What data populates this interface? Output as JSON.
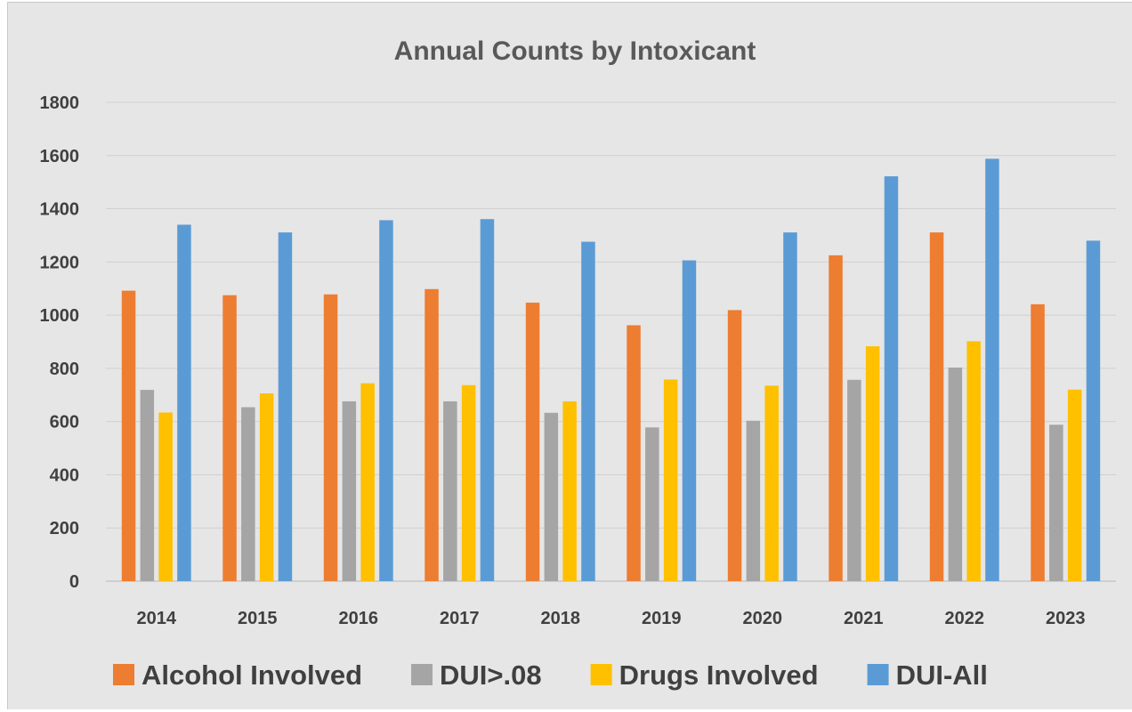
{
  "chart_data": {
    "type": "bar",
    "title": "Annual Counts by Intoxicant",
    "xlabel": "",
    "ylabel": "",
    "ylim": [
      0,
      1800
    ],
    "yticks": [
      0,
      200,
      400,
      600,
      800,
      1000,
      1200,
      1400,
      1600,
      1800
    ],
    "grid": true,
    "legend_position": "bottom",
    "categories": [
      "2014",
      "2015",
      "2016",
      "2017",
      "2018",
      "2019",
      "2020",
      "2021",
      "2022",
      "2023"
    ],
    "series": [
      {
        "name": "Alcohol Involved",
        "color": "#ed7d31",
        "values": [
          1092,
          1075,
          1078,
          1098,
          1047,
          962,
          1019,
          1225,
          1311,
          1041
        ]
      },
      {
        "name": "DUI>.08",
        "color": "#a5a5a5",
        "values": [
          719,
          654,
          676,
          676,
          633,
          578,
          603,
          757,
          803,
          588
        ]
      },
      {
        "name": "Drugs Involved",
        "color": "#ffc000",
        "values": [
          634,
          706,
          744,
          737,
          676,
          758,
          735,
          883,
          902,
          720
        ]
      },
      {
        "name": "DUI-All",
        "color": "#5b9bd5",
        "values": [
          1340,
          1311,
          1357,
          1361,
          1276,
          1206,
          1311,
          1522,
          1588,
          1280
        ]
      }
    ]
  }
}
